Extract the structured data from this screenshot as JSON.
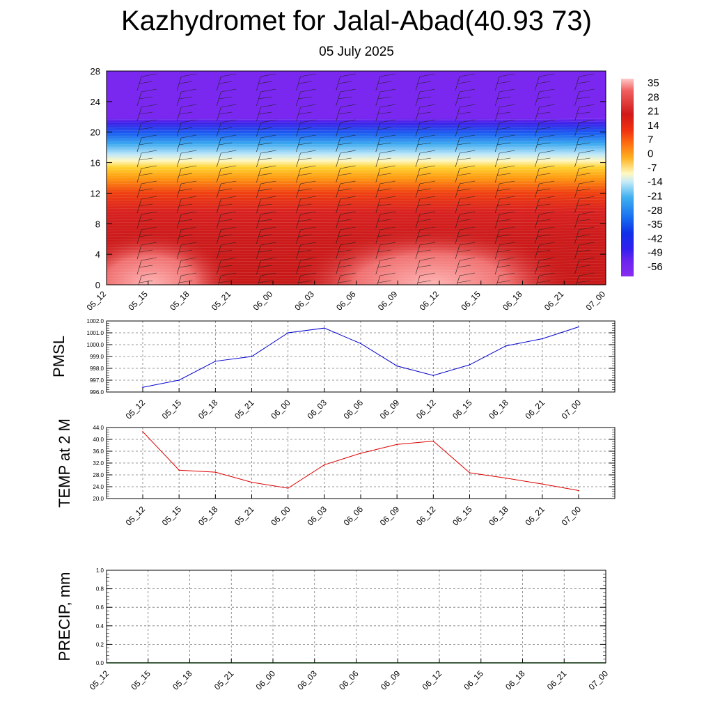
{
  "title": "Kazhydromet for Jalal-Abad(40.93 73)",
  "subtitle": "05 July 2025",
  "chart_data": [
    {
      "type": "heatmap",
      "ylim": [
        0,
        28
      ],
      "yticks": [
        "0",
        "4",
        "8",
        "12",
        "16",
        "20",
        "24",
        "28"
      ],
      "x_labels": [
        "05_12",
        "05_15",
        "05_18",
        "05_21",
        "06_00",
        "06_03",
        "06_06",
        "06_09",
        "06_12",
        "06_15",
        "06_18",
        "06_21",
        "07_00"
      ],
      "colorbar_labels": [
        "35",
        "28",
        "21",
        "14",
        "7",
        "0",
        "-7",
        "-14",
        "-21",
        "-28",
        "-35",
        "-42",
        "-49",
        "-56"
      ],
      "colorbar_range": [
        -63,
        42
      ],
      "colors": {
        "warm": "#d42020",
        "hot": "#ffb0b0",
        "cold": "#7b28f0",
        "mid": "#fff3a0"
      }
    },
    {
      "type": "line",
      "ylabel": "PMSL",
      "ylim": [
        996.0,
        1002.0
      ],
      "yticks": [
        "996.0",
        "997.0",
        "998.0",
        "999.0",
        "1000.0",
        "1001.0",
        "1002.0"
      ],
      "x": [
        "05_12",
        "05_15",
        "05_18",
        "05_21",
        "06_00",
        "06_03",
        "06_06",
        "06_09",
        "06_12",
        "06_15",
        "06_18",
        "06_21",
        "07_00"
      ],
      "values": [
        996.4,
        997.0,
        998.6,
        999.0,
        1001.0,
        1001.4,
        1000.1,
        998.2,
        997.4,
        998.3,
        999.9,
        1000.5,
        1001.5
      ],
      "color": "#0000cc"
    },
    {
      "type": "line",
      "ylabel": "TEMP at 2 M",
      "ylim": [
        20.0,
        44.0
      ],
      "yticks": [
        "20.0",
        "24.0",
        "28.0",
        "32.0",
        "36.0",
        "40.0",
        "44.0"
      ],
      "x": [
        "05_12",
        "05_15",
        "05_18",
        "05_21",
        "06_00",
        "06_03",
        "06_06",
        "06_09",
        "06_12",
        "06_15",
        "06_18",
        "06_21",
        "07_00"
      ],
      "values": [
        42.6,
        29.6,
        28.9,
        25.5,
        23.5,
        31.4,
        35.3,
        38.3,
        39.4,
        28.7,
        26.9,
        24.9,
        22.7
      ],
      "color": "#dd0000"
    },
    {
      "type": "line",
      "ylabel": "PRECIP, mm",
      "ylim": [
        0.0,
        1.0
      ],
      "yticks": [
        "0.0",
        "0.2",
        "0.4",
        "0.6",
        "0.8",
        "1.0"
      ],
      "x": [
        "05_12",
        "05_15",
        "05_18",
        "05_21",
        "06_00",
        "06_03",
        "06_06",
        "06_09",
        "06_12",
        "06_15",
        "06_18",
        "06_21",
        "07_00"
      ],
      "values": [
        0,
        0,
        0,
        0,
        0,
        0,
        0,
        0,
        0,
        0,
        0,
        0,
        0
      ],
      "color": "#007700"
    }
  ]
}
